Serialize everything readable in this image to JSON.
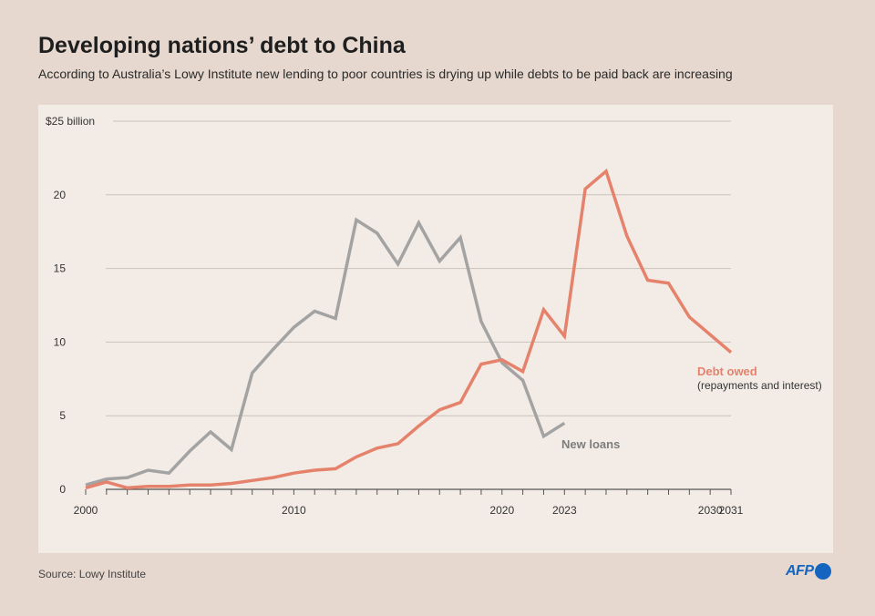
{
  "header": {
    "title": "Developing nations’ debt to China",
    "subtitle": "According to Australia’s Lowy Institute new lending to poor countries is drying up while debts to be paid back are increasing"
  },
  "footer": {
    "source": "Source: Lowy Institute",
    "logo_text": "AFP"
  },
  "colors": {
    "background": "#e6d8ce",
    "panel": "#f3ece6",
    "new_loans": "#a3a3a3",
    "debt_owed": "#e5826c",
    "grid": "#c9c2bc"
  },
  "chart_data": {
    "type": "line",
    "title": "Developing nations’ debt to China",
    "xlim": [
      2000,
      2031
    ],
    "ylim": [
      0,
      25
    ],
    "y_ticks": [
      {
        "value": 0,
        "label": "0"
      },
      {
        "value": 5,
        "label": "5"
      },
      {
        "value": 10,
        "label": "10"
      },
      {
        "value": 15,
        "label": "15"
      },
      {
        "value": 20,
        "label": "20"
      },
      {
        "value": 25,
        "label": "$25 billion"
      }
    ],
    "x_tick_labels": [
      {
        "value": 2000,
        "label": "2000"
      },
      {
        "value": 2010,
        "label": "2010"
      },
      {
        "value": 2020,
        "label": "2020"
      },
      {
        "value": 2023,
        "label": "2023"
      },
      {
        "value": 2030,
        "label": "2030"
      },
      {
        "value": 2031,
        "label": "2031"
      }
    ],
    "grid": true,
    "series": [
      {
        "name": "New loans",
        "label": "New loans",
        "color": "#a3a3a3",
        "x": [
          2000,
          2001,
          2002,
          2003,
          2004,
          2005,
          2006,
          2007,
          2008,
          2009,
          2010,
          2011,
          2012,
          2013,
          2014,
          2015,
          2016,
          2017,
          2018,
          2019,
          2020,
          2021,
          2022,
          2023
        ],
        "y": [
          0.3,
          0.7,
          0.8,
          1.3,
          1.1,
          2.6,
          3.9,
          2.7,
          7.9,
          9.5,
          11.0,
          12.1,
          11.6,
          18.3,
          17.4,
          15.3,
          18.1,
          15.5,
          17.1,
          11.4,
          8.6,
          7.4,
          3.6,
          4.5
        ]
      },
      {
        "name": "Debt owed",
        "label": "Debt owed",
        "sublabel": "(repayments and interest)",
        "color": "#e5826c",
        "x": [
          2000,
          2001,
          2002,
          2003,
          2004,
          2005,
          2006,
          2007,
          2008,
          2009,
          2010,
          2011,
          2012,
          2013,
          2014,
          2015,
          2016,
          2017,
          2018,
          2019,
          2020,
          2021,
          2022,
          2023,
          2024,
          2025,
          2026,
          2027,
          2028,
          2029,
          2030,
          2031
        ],
        "y": [
          0.1,
          0.5,
          0.1,
          0.2,
          0.2,
          0.3,
          0.3,
          0.4,
          0.6,
          0.8,
          1.1,
          1.3,
          1.4,
          2.2,
          2.8,
          3.1,
          4.3,
          5.4,
          5.9,
          8.5,
          8.8,
          8.0,
          12.2,
          10.4,
          20.4,
          21.6,
          17.2,
          14.2,
          14.0,
          11.7,
          10.5,
          9.3
        ]
      }
    ]
  }
}
